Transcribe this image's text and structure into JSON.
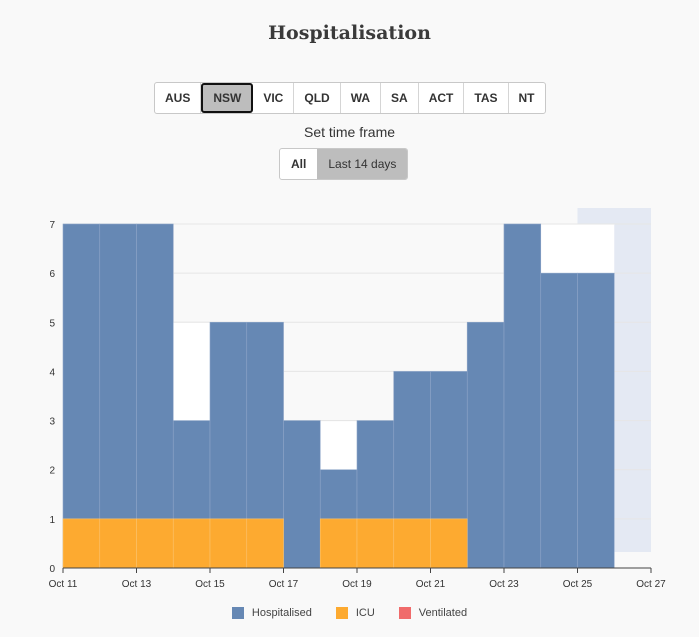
{
  "header": {
    "title": "Hospitalisation"
  },
  "states": {
    "items": [
      "AUS",
      "NSW",
      "VIC",
      "QLD",
      "WA",
      "SA",
      "ACT",
      "TAS",
      "NT"
    ],
    "selected": "NSW"
  },
  "timeframe": {
    "label": "Set time frame",
    "options": [
      "All",
      "Last 14 days"
    ],
    "selected": "Last 14 days"
  },
  "chart_data": {
    "type": "bar",
    "title": "Hospitalisation",
    "x": [
      "Oct 11",
      "Oct 12",
      "Oct 13",
      "Oct 14",
      "Oct 15",
      "Oct 16",
      "Oct 17",
      "Oct 18",
      "Oct 19",
      "Oct 20",
      "Oct 21",
      "Oct 22",
      "Oct 23",
      "Oct 24",
      "Oct 25",
      "Oct 26"
    ],
    "x_ticks": [
      "Oct 11",
      "Oct 13",
      "Oct 15",
      "Oct 17",
      "Oct 19",
      "Oct 21",
      "Oct 23",
      "Oct 25",
      "Oct 27"
    ],
    "y_ticks": [
      0,
      1,
      2,
      3,
      4,
      5,
      6,
      7
    ],
    "ylim": [
      0,
      7
    ],
    "series": [
      {
        "name": "Hospitalised",
        "color": "#6688b4",
        "values": [
          7,
          7,
          7,
          3,
          5,
          5,
          3,
          2,
          3,
          4,
          4,
          5,
          7,
          6,
          6,
          null
        ]
      },
      {
        "name": "ICU",
        "color": "#fdaa30",
        "values": [
          1,
          1,
          1,
          1,
          1,
          1,
          0,
          1,
          1,
          1,
          1,
          0,
          0,
          0,
          0,
          null
        ]
      },
      {
        "name": "Ventilated",
        "color": "#f06b6b",
        "values": [
          0,
          0,
          0,
          0,
          0,
          0,
          0,
          0,
          0,
          0,
          0,
          0,
          0,
          0,
          0,
          null
        ]
      }
    ],
    "step_outline_max": [
      7,
      7,
      7,
      5,
      5,
      5,
      3,
      3,
      3,
      4,
      4,
      5,
      7,
      7,
      7,
      null
    ],
    "shaded_region": {
      "from": "Oct 24",
      "to": "Oct 27",
      "color": "#e4e9f3"
    }
  }
}
